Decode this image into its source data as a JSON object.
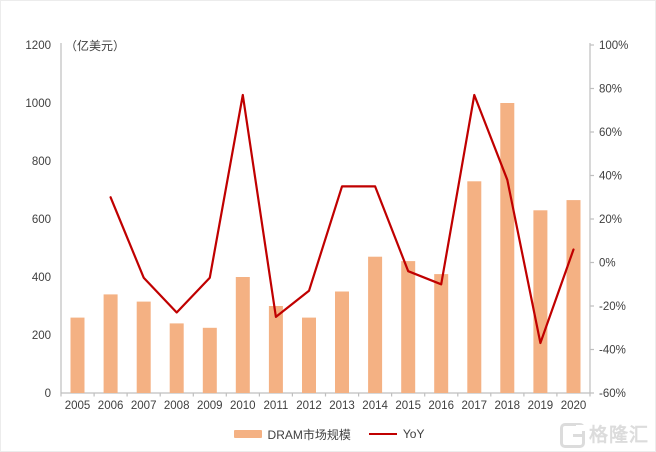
{
  "chart_data": {
    "type": "combo-bar-line",
    "title": "",
    "unit_label": "（亿美元）",
    "categories": [
      "2005",
      "2006",
      "2007",
      "2008",
      "2009",
      "2010",
      "2011",
      "2012",
      "2013",
      "2014",
      "2015",
      "2016",
      "2017",
      "2018",
      "2019",
      "2020"
    ],
    "series": [
      {
        "name": "DRAM市场规模",
        "type": "bar",
        "axis": "left",
        "color": "#F4B183",
        "values": [
          260,
          340,
          315,
          240,
          225,
          400,
          300,
          260,
          350,
          470,
          455,
          410,
          730,
          1000,
          630,
          665
        ]
      },
      {
        "name": "YoY",
        "type": "line",
        "axis": "right",
        "color": "#C00000",
        "values": [
          null,
          30,
          -7,
          -23,
          -7,
          77,
          -25,
          -13,
          35,
          35,
          -4,
          -10,
          77,
          38,
          -37,
          6
        ]
      }
    ],
    "left_axis": {
      "min": 0,
      "max": 1200,
      "step": 200,
      "tick_labels": [
        "0",
        "200",
        "400",
        "600",
        "800",
        "1000",
        "1200"
      ]
    },
    "right_axis": {
      "min": -60,
      "max": 100,
      "step": 20,
      "tick_labels": [
        "-60%",
        "-40%",
        "-20%",
        "0%",
        "20%",
        "40%",
        "60%",
        "80%",
        "100%"
      ]
    },
    "grid": false,
    "legend_position": "bottom"
  },
  "colors": {
    "bar": "#F4B183",
    "line": "#C00000",
    "axis": "#BFBFBF",
    "label": "#404040",
    "watermark": "#DCDCDC"
  },
  "watermark": {
    "text": "格隆汇"
  }
}
